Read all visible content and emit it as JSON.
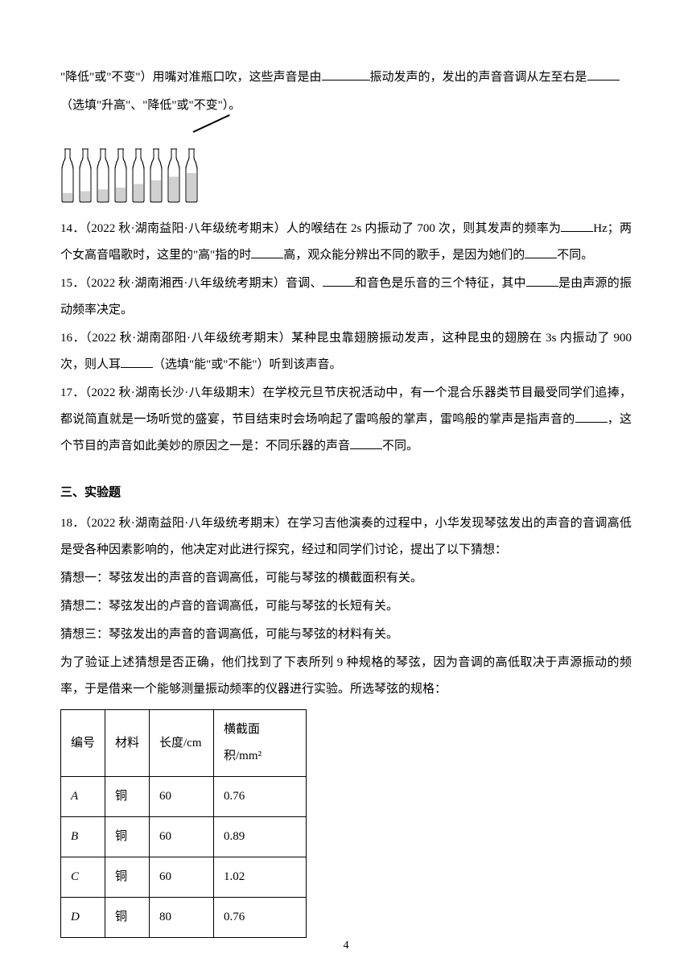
{
  "intro": {
    "line1": "\"降低\"或\"不变\"）用嘴对准瓶口吹，这些声音是由",
    "line1_end": "振动发声的，发出的声音音调从左至右是",
    "line2": "（选填\"升高\"、\"降低\"或\"不变\"）。"
  },
  "bottles": {
    "count": 8,
    "fill_levels": [
      0.25,
      0.3,
      0.35,
      0.4,
      0.5,
      0.6,
      0.7,
      0.8
    ],
    "bottle_color": "#d0d0d0",
    "outline_color": "#000000"
  },
  "q14": {
    "prefix": "14．（2022 秋·湖南益阳·八年级统考期末）人的喉结在 2s 内振动了 700 次，则其发声的频率为",
    "mid1": "Hz；两个女高音唱歌时，这里的\"高\"指的时",
    "mid2": "高，观众能分辨出不同的歌手，是因为她们的",
    "end": "不同。"
  },
  "q15": {
    "prefix": "15．（2022 秋·湖南湘西·八年级统考期末）音调、",
    "mid": "和音色是乐音的三个特征，其中",
    "end": "是由声源的振动频率决定。"
  },
  "q16": {
    "prefix": "16．（2022 秋·湖南邵阳·八年级统考期末）某种昆虫靠翅膀振动发声，这种昆虫的翅膀在 3s 内振动了 900次，则人耳",
    "end": "（选填\"能\"或\"不能\"）听到该声音。"
  },
  "q17": {
    "prefix": "17．（2022 秋·湖南长沙·八年级期末）在学校元旦节庆祝活动中，有一个混合乐器类节目最受同学们追捧，都说简直就是一场听觉的盛宴，节目结束时会场响起了雷鸣般的掌声，雷鸣般的掌声是指声音的",
    "mid": "，这个节目的声音如此美妙的原因之一是：不同乐器的声音",
    "end": "不同。"
  },
  "section3": {
    "title": "三、实验题"
  },
  "q18": {
    "intro": "18．（2022 秋·湖南益阳·八年级统考期末）在学习吉他演奏的过程中，小华发现琴弦发出的声音的音调高低是受各种因素影响的，他决定对此进行探究，经过和同学们讨论，提出了以下猜想：",
    "hyp1": "猜想一：琴弦发出的声音的音调高低，可能与琴弦的横截面积有关。",
    "hyp2": "猜想二：琴弦发出的卢音的音调高低，可能与琴弦的长短有关。",
    "hyp3": "猜想三：琴弦发出的声音的音调高低，可能与琴弦的材料有关。",
    "detail": "为了验证上述猜想是否正确，他们找到了下表所列 9 种规格的琴弦，因为音调的高低取决于声源振动的频率，于是借来一个能够测量振动频率的仪器进行实验。所选琴弦的规格："
  },
  "table": {
    "headers": [
      "编号",
      "材料",
      "长度/cm",
      "横截面积/mm²"
    ],
    "rows": [
      [
        "A",
        "铜",
        "60",
        "0.76"
      ],
      [
        "B",
        "铜",
        "60",
        "0.89"
      ],
      [
        "C",
        "铜",
        "60",
        "1.02"
      ],
      [
        "D",
        "铜",
        "80",
        "0.76"
      ]
    ],
    "col_widths": [
      "55px",
      "55px",
      "80px",
      "115px"
    ]
  },
  "page_number": "4",
  "colors": {
    "text": "#000000",
    "background": "#ffffff",
    "border": "#000000"
  }
}
